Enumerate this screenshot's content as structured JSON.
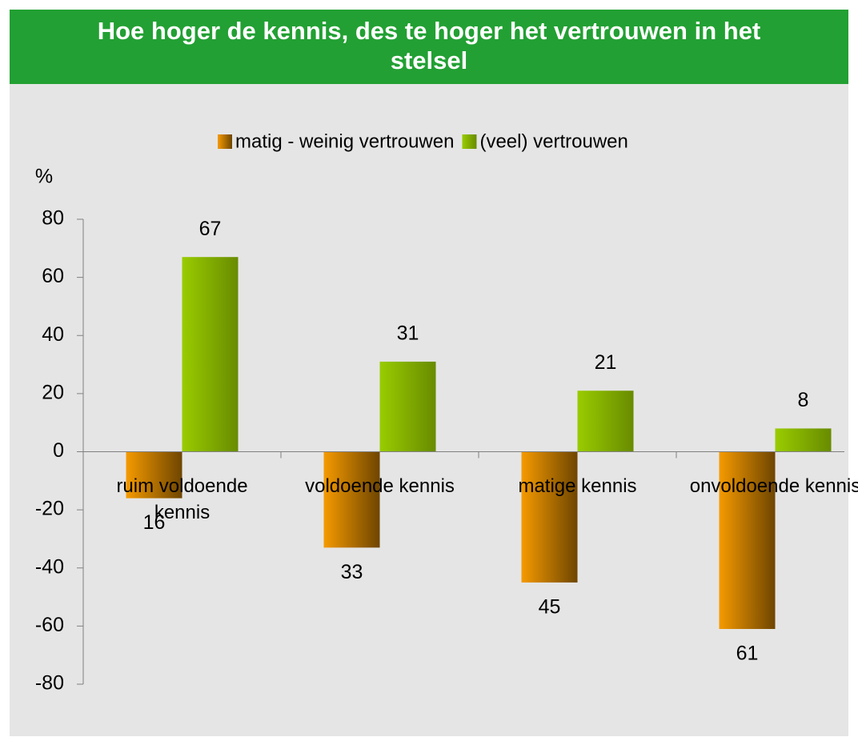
{
  "chart_data": {
    "type": "bar",
    "title": "Hoe hoger de kennis, des te hoger het vertrouwen in het stelsel",
    "y_label": "%",
    "categories": [
      "ruim voldoende kennis",
      "voldoende kennis",
      "matige kennis",
      "onvoldoende kennis"
    ],
    "series": [
      {
        "name": "matig - weinig vertrouwen",
        "color": "#f59a00",
        "values": [
          -16,
          -33,
          -45,
          -61
        ],
        "value_labels": [
          "16",
          "33",
          "45",
          "61"
        ]
      },
      {
        "name": "(veel) vertrouwen",
        "color": "#99cc00",
        "values": [
          67,
          31,
          21,
          8
        ]
      }
    ],
    "ylim": [
      -80,
      80
    ],
    "yticks": [
      -80,
      -60,
      -40,
      -20,
      0,
      20,
      40,
      60,
      80
    ],
    "legend": "top"
  }
}
